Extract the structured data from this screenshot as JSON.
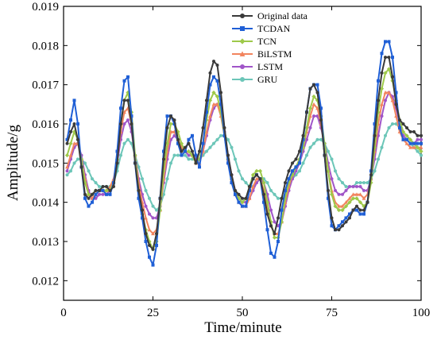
{
  "chart_data": {
    "type": "line",
    "xlabel": "Time/minute",
    "ylabel": "Amplitude/g",
    "xlim": [
      0,
      100
    ],
    "ylim": [
      0.0115,
      0.019
    ],
    "x_ticks": [
      0,
      25,
      50,
      75,
      100
    ],
    "x_tick_labels": [
      "0",
      "25",
      "50",
      "75",
      "100"
    ],
    "y_ticks": [
      0.012,
      0.013,
      0.014,
      0.015,
      0.016,
      0.017,
      0.018,
      0.019
    ],
    "y_tick_labels": [
      "0.012",
      "0.013",
      "0.014",
      "0.015",
      "0.016",
      "0.017",
      "0.018",
      "0.019"
    ],
    "grid": false,
    "legend_position": "top-right",
    "x": [
      1,
      2,
      3,
      4,
      5,
      6,
      7,
      8,
      9,
      10,
      11,
      12,
      13,
      14,
      15,
      16,
      17,
      18,
      19,
      20,
      21,
      22,
      23,
      24,
      25,
      26,
      27,
      28,
      29,
      30,
      31,
      32,
      33,
      34,
      35,
      36,
      37,
      38,
      39,
      40,
      41,
      42,
      43,
      44,
      45,
      46,
      47,
      48,
      49,
      50,
      51,
      52,
      53,
      54,
      55,
      56,
      57,
      58,
      59,
      60,
      61,
      62,
      63,
      64,
      65,
      66,
      67,
      68,
      69,
      70,
      71,
      72,
      73,
      74,
      75,
      76,
      77,
      78,
      79,
      80,
      81,
      82,
      83,
      84,
      85,
      86,
      87,
      88,
      89,
      90,
      91,
      92,
      93,
      94,
      95,
      96,
      97,
      98,
      99,
      100
    ],
    "series": [
      {
        "name": "Original data",
        "color": "#3a3a3a",
        "marker": "circle",
        "values": [
          0.0155,
          0.0158,
          0.016,
          0.0156,
          0.0149,
          0.0142,
          0.0141,
          0.0142,
          0.0143,
          0.0143,
          0.0144,
          0.0144,
          0.0143,
          0.0144,
          0.015,
          0.016,
          0.0166,
          0.0166,
          0.016,
          0.015,
          0.0143,
          0.0138,
          0.0132,
          0.0129,
          0.0128,
          0.0132,
          0.0141,
          0.0151,
          0.0159,
          0.0162,
          0.0161,
          0.0156,
          0.0153,
          0.0154,
          0.0155,
          0.0153,
          0.015,
          0.0153,
          0.0159,
          0.0166,
          0.0173,
          0.0176,
          0.0175,
          0.0168,
          0.0159,
          0.0152,
          0.0147,
          0.0143,
          0.0142,
          0.0141,
          0.0141,
          0.0144,
          0.0146,
          0.0147,
          0.0146,
          0.0142,
          0.0137,
          0.0134,
          0.0132,
          0.0136,
          0.0141,
          0.0145,
          0.0148,
          0.015,
          0.0151,
          0.0153,
          0.0157,
          0.0163,
          0.0169,
          0.017,
          0.0168,
          0.0161,
          0.0152,
          0.0143,
          0.0136,
          0.0133,
          0.0133,
          0.0134,
          0.0135,
          0.0136,
          0.0138,
          0.0139,
          0.0138,
          0.0138,
          0.014,
          0.0147,
          0.0157,
          0.0166,
          0.0173,
          0.0177,
          0.0177,
          0.0172,
          0.0165,
          0.0161,
          0.016,
          0.0159,
          0.0158,
          0.0158,
          0.0157,
          0.0157
        ]
      },
      {
        "name": "TCDAN",
        "color": "#1f5fd6",
        "marker": "square",
        "values": [
          0.0156,
          0.0161,
          0.0166,
          0.016,
          0.0149,
          0.0141,
          0.0139,
          0.014,
          0.0142,
          0.0143,
          0.0143,
          0.0142,
          0.0142,
          0.0145,
          0.0153,
          0.0164,
          0.0171,
          0.0172,
          0.0162,
          0.015,
          0.0141,
          0.0136,
          0.013,
          0.0126,
          0.0124,
          0.0129,
          0.0141,
          0.0153,
          0.0162,
          0.0162,
          0.016,
          0.0155,
          0.0152,
          0.0153,
          0.0156,
          0.0157,
          0.0152,
          0.0149,
          0.0155,
          0.0163,
          0.017,
          0.0172,
          0.0171,
          0.0165,
          0.0157,
          0.015,
          0.0145,
          0.0142,
          0.014,
          0.0139,
          0.0139,
          0.0143,
          0.0146,
          0.0147,
          0.0146,
          0.014,
          0.0133,
          0.0127,
          0.0126,
          0.013,
          0.0138,
          0.0143,
          0.0146,
          0.0148,
          0.0149,
          0.015,
          0.0156,
          0.0163,
          0.0169,
          0.017,
          0.017,
          0.0164,
          0.0152,
          0.0141,
          0.0134,
          0.0133,
          0.0134,
          0.0135,
          0.0136,
          0.0137,
          0.0138,
          0.0138,
          0.0137,
          0.0137,
          0.014,
          0.0148,
          0.016,
          0.0171,
          0.0178,
          0.0181,
          0.0181,
          0.0177,
          0.0168,
          0.0159,
          0.0156,
          0.0156,
          0.0155,
          0.0155,
          0.0155,
          0.0155
        ]
      },
      {
        "name": "TCN",
        "color": "#9ec94a",
        "marker": "diamond",
        "values": [
          0.0152,
          0.0155,
          0.0158,
          0.0156,
          0.0151,
          0.0145,
          0.0142,
          0.0142,
          0.0143,
          0.0143,
          0.0143,
          0.0143,
          0.0143,
          0.0145,
          0.0151,
          0.016,
          0.0166,
          0.0168,
          0.0163,
          0.0152,
          0.0143,
          0.0137,
          0.0133,
          0.013,
          0.0128,
          0.013,
          0.0138,
          0.0148,
          0.0155,
          0.016,
          0.016,
          0.0158,
          0.0155,
          0.0153,
          0.0153,
          0.0152,
          0.015,
          0.0151,
          0.0155,
          0.0161,
          0.0166,
          0.0168,
          0.0167,
          0.0163,
          0.0157,
          0.0151,
          0.0146,
          0.0143,
          0.0141,
          0.014,
          0.0141,
          0.0144,
          0.0147,
          0.0148,
          0.0148,
          0.0145,
          0.014,
          0.0135,
          0.0131,
          0.0131,
          0.0135,
          0.0141,
          0.0145,
          0.0147,
          0.0149,
          0.0151,
          0.0154,
          0.0159,
          0.0164,
          0.0167,
          0.0166,
          0.0162,
          0.0155,
          0.0148,
          0.0142,
          0.0139,
          0.0138,
          0.0138,
          0.0139,
          0.014,
          0.0141,
          0.0141,
          0.014,
          0.0139,
          0.014,
          0.0145,
          0.0154,
          0.0163,
          0.0169,
          0.0173,
          0.0174,
          0.0171,
          0.0166,
          0.0161,
          0.0158,
          0.0157,
          0.0156,
          0.0155,
          0.0154,
          0.0153
        ]
      },
      {
        "name": "BiLSTM",
        "color": "#f2845e",
        "marker": "triangle",
        "values": [
          0.0149,
          0.0152,
          0.0155,
          0.0155,
          0.0151,
          0.0146,
          0.0142,
          0.0141,
          0.0142,
          0.0143,
          0.0143,
          0.0143,
          0.0144,
          0.0146,
          0.0151,
          0.0158,
          0.0163,
          0.0164,
          0.016,
          0.0152,
          0.0145,
          0.014,
          0.0136,
          0.0133,
          0.0132,
          0.0133,
          0.0138,
          0.0146,
          0.0153,
          0.0158,
          0.0158,
          0.0156,
          0.0154,
          0.0153,
          0.0153,
          0.0152,
          0.015,
          0.015,
          0.0153,
          0.0158,
          0.0162,
          0.0165,
          0.0165,
          0.0162,
          0.0157,
          0.0151,
          0.0146,
          0.0142,
          0.014,
          0.0139,
          0.0139,
          0.0141,
          0.0144,
          0.0146,
          0.0146,
          0.0143,
          0.0139,
          0.0134,
          0.0132,
          0.0132,
          0.0135,
          0.014,
          0.0144,
          0.0147,
          0.0149,
          0.0151,
          0.0154,
          0.0158,
          0.0162,
          0.0165,
          0.0164,
          0.016,
          0.0154,
          0.0148,
          0.0143,
          0.014,
          0.0139,
          0.0139,
          0.014,
          0.0141,
          0.0142,
          0.0142,
          0.0142,
          0.0141,
          0.0142,
          0.0146,
          0.0153,
          0.016,
          0.0165,
          0.0168,
          0.0168,
          0.0166,
          0.0162,
          0.0158,
          0.0156,
          0.0155,
          0.0154,
          0.0154,
          0.0154,
          0.0154
        ]
      },
      {
        "name": "LSTM",
        "color": "#a055c8",
        "marker": "circle",
        "values": [
          0.0148,
          0.0151,
          0.0154,
          0.0155,
          0.0152,
          0.0147,
          0.0143,
          0.0141,
          0.0141,
          0.0142,
          0.0142,
          0.0142,
          0.0143,
          0.0145,
          0.015,
          0.0156,
          0.016,
          0.0161,
          0.0158,
          0.0152,
          0.0146,
          0.0142,
          0.0139,
          0.0137,
          0.0136,
          0.0136,
          0.0139,
          0.0145,
          0.0151,
          0.0156,
          0.0157,
          0.0156,
          0.0154,
          0.0153,
          0.0152,
          0.0152,
          0.0151,
          0.0151,
          0.0153,
          0.0157,
          0.0161,
          0.0164,
          0.0165,
          0.0163,
          0.0158,
          0.0152,
          0.0147,
          0.0143,
          0.0141,
          0.014,
          0.014,
          0.0141,
          0.0143,
          0.0145,
          0.0146,
          0.0145,
          0.0142,
          0.0138,
          0.0135,
          0.0134,
          0.0135,
          0.0139,
          0.0143,
          0.0146,
          0.0148,
          0.015,
          0.0153,
          0.0156,
          0.0159,
          0.0162,
          0.0162,
          0.0159,
          0.0155,
          0.015,
          0.0146,
          0.0143,
          0.0142,
          0.0142,
          0.0143,
          0.0144,
          0.0144,
          0.0144,
          0.0144,
          0.0143,
          0.0143,
          0.0146,
          0.0151,
          0.0157,
          0.0162,
          0.0166,
          0.0168,
          0.0167,
          0.0164,
          0.016,
          0.0157,
          0.0156,
          0.0155,
          0.0155,
          0.0156,
          0.0156
        ]
      },
      {
        "name": "GRU",
        "color": "#6cc6b8",
        "marker": "circle",
        "values": [
          0.0147,
          0.0148,
          0.015,
          0.0151,
          0.0151,
          0.015,
          0.0148,
          0.0146,
          0.0145,
          0.0144,
          0.0144,
          0.0144,
          0.0144,
          0.0145,
          0.0148,
          0.0152,
          0.0155,
          0.0156,
          0.0155,
          0.0152,
          0.0149,
          0.0146,
          0.0143,
          0.0141,
          0.0139,
          0.0138,
          0.0139,
          0.0142,
          0.0146,
          0.015,
          0.0152,
          0.0152,
          0.0152,
          0.0152,
          0.0151,
          0.0151,
          0.0151,
          0.0151,
          0.0152,
          0.0153,
          0.0154,
          0.0155,
          0.0156,
          0.0157,
          0.0157,
          0.0156,
          0.0154,
          0.0151,
          0.0148,
          0.0146,
          0.0145,
          0.0144,
          0.0144,
          0.0145,
          0.0146,
          0.0146,
          0.0145,
          0.0143,
          0.0142,
          0.0141,
          0.0141,
          0.0142,
          0.0144,
          0.0146,
          0.0147,
          0.0148,
          0.015,
          0.0152,
          0.0154,
          0.0155,
          0.0156,
          0.0156,
          0.0155,
          0.0153,
          0.0151,
          0.0148,
          0.0146,
          0.0145,
          0.0144,
          0.0144,
          0.0144,
          0.0145,
          0.0145,
          0.0145,
          0.0145,
          0.0146,
          0.0148,
          0.0151,
          0.0154,
          0.0157,
          0.0159,
          0.016,
          0.016,
          0.0159,
          0.0157,
          0.0156,
          0.0155,
          0.0154,
          0.0153,
          0.0152
        ]
      }
    ]
  }
}
